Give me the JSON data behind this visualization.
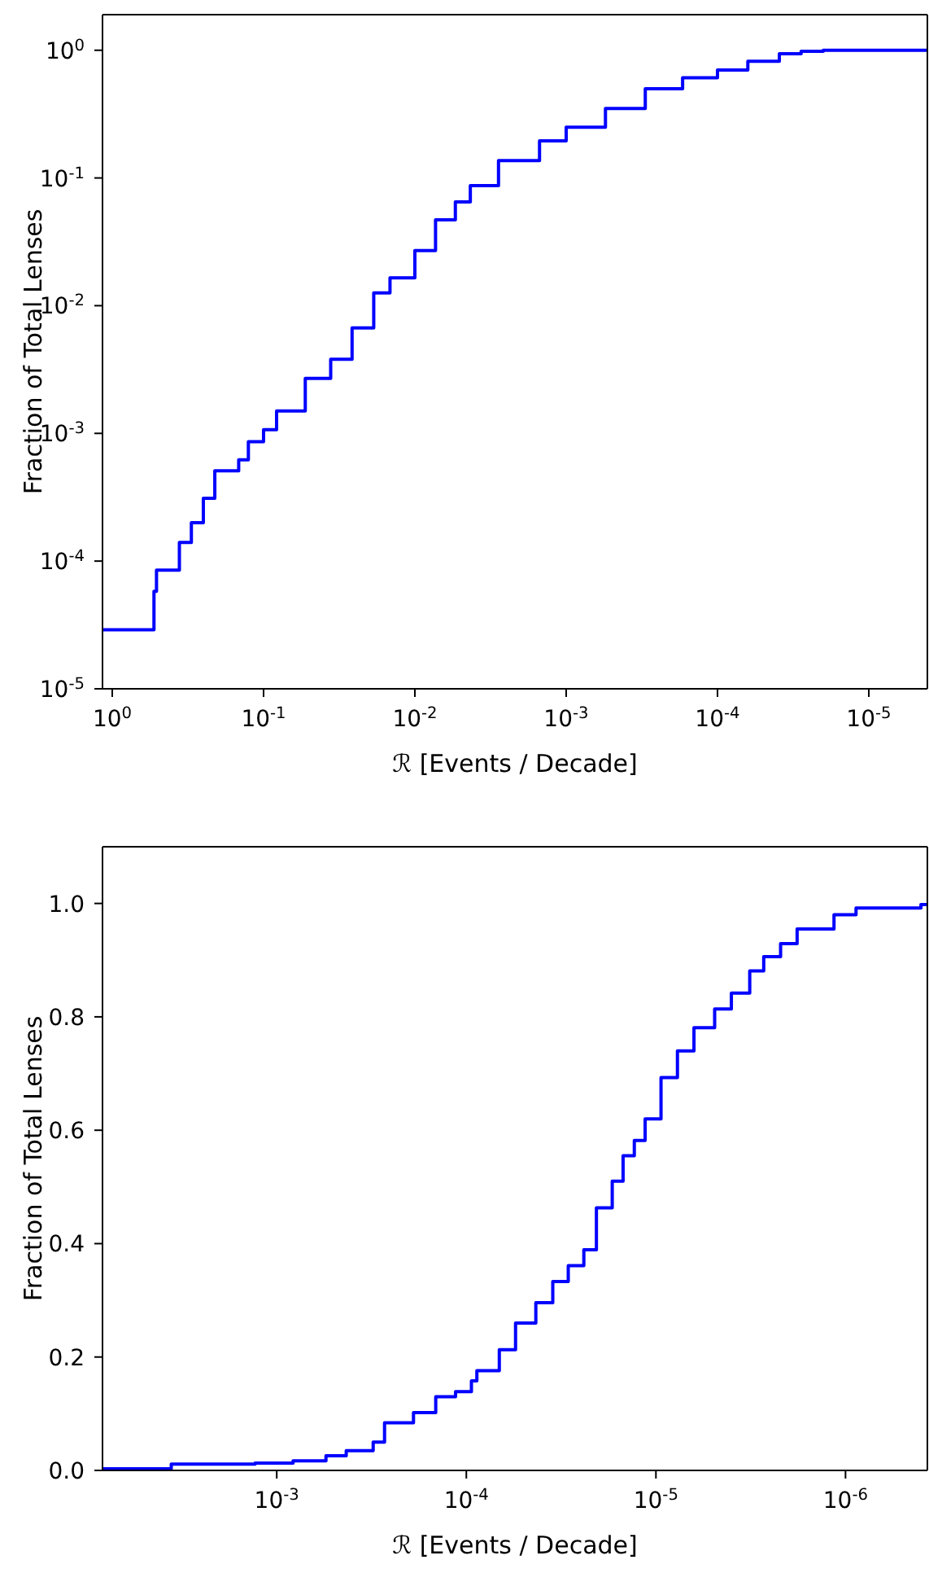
{
  "chart_data": [
    {
      "type": "step",
      "xlabel": "ℛ [Events / Decade]",
      "ylabel": "Fraction of Total Lenses",
      "log": "xy",
      "marker": "none",
      "line_style": "solid",
      "xlim": [
        1.16,
        4.1e-06
      ],
      "xticks": [
        {
          "value": 1,
          "label": "10$^{0}$"
        },
        {
          "value": 0.1,
          "label": "10$^{-1}$"
        },
        {
          "value": 0.01,
          "label": "10$^{-2}$"
        },
        {
          "value": 0.001,
          "label": "10$^{-3}$"
        },
        {
          "value": 0.0001,
          "label": "10$^{-4}$"
        },
        {
          "value": 1e-05,
          "label": "10$^{-5}$"
        }
      ],
      "ylim": [
        1e-05,
        1.9
      ],
      "yticks": [
        {
          "value": 1e-05,
          "label": "10$^{-5}$"
        },
        {
          "value": 0.0001,
          "label": "10$^{-4}$"
        },
        {
          "value": 0.001,
          "label": "10$^{-3}$"
        },
        {
          "value": 0.01,
          "label": "10$^{-2}$"
        },
        {
          "value": 0.1,
          "label": "10$^{-1}$"
        },
        {
          "value": 1,
          "label": "10$^{0}$"
        }
      ],
      "series": [
        {
          "color": "#0000ff",
          "x": [
            1.16,
            0.53,
            0.51,
            0.36,
            0.3,
            0.25,
            0.21,
            0.146,
            0.126,
            0.1,
            0.082,
            0.053,
            0.036,
            0.026,
            0.0187,
            0.0146,
            0.01,
            0.0073,
            0.0054,
            0.0043,
            0.0028,
            0.0015,
            0.001,
            0.00055,
            0.0003,
            0.00017,
            0.0001,
            6.3e-05,
            3.9e-05,
            2.8e-05,
            2e-05,
            4.1e-06
          ],
          "values": [
            2.9e-05,
            5.8e-05,
            8.5e-05,
            0.00014,
            0.0002,
            0.00031,
            0.00051,
            0.00062,
            0.00086,
            0.00107,
            0.0015,
            0.0027,
            0.0038,
            0.0067,
            0.0126,
            0.0165,
            0.027,
            0.047,
            0.065,
            0.087,
            0.137,
            0.195,
            0.25,
            0.35,
            0.5,
            0.61,
            0.7,
            0.82,
            0.94,
            0.98,
            1.0,
            1.0
          ]
        }
      ]
    },
    {
      "type": "step",
      "xlabel": "ℛ [Events / Decade]",
      "ylabel": "Fraction of Total Lenses",
      "log": "x",
      "marker": "none",
      "line_style": "solid",
      "xlim": [
        0.0083,
        3.7e-07
      ],
      "xticks": [
        {
          "value": 0.001,
          "label": "10$^{-3}$"
        },
        {
          "value": 0.0001,
          "label": "10$^{-4}$"
        },
        {
          "value": 1e-05,
          "label": "10$^{-5}$"
        },
        {
          "value": 1e-06,
          "label": "10$^{-6}$"
        }
      ],
      "ylim": [
        0,
        1.1
      ],
      "yticks": [
        {
          "value": 0,
          "label": "0.0"
        },
        {
          "value": 0.2,
          "label": "0.2"
        },
        {
          "value": 0.4,
          "label": "0.4"
        },
        {
          "value": 0.6,
          "label": "0.6"
        },
        {
          "value": 0.8,
          "label": "0.8"
        },
        {
          "value": 1.0,
          "label": "1.0"
        }
      ],
      "series": [
        {
          "color": "#0000ff",
          "x": [
            0.0083,
            0.0036,
            0.0013,
            0.00082,
            0.00055,
            0.00043,
            0.00031,
            0.00027,
            0.00019,
            0.000145,
            0.000114,
            9.4e-05,
            8.8e-05,
            6.7e-05,
            5.5e-05,
            4.3e-05,
            3.5e-05,
            2.9e-05,
            2.4e-05,
            2.06e-05,
            1.7e-05,
            1.49e-05,
            1.3e-05,
            1.14e-05,
            9.4e-06,
            7.7e-06,
            6.3e-06,
            4.9e-06,
            4e-06,
            3.2e-06,
            2.7e-06,
            2.2e-06,
            1.8e-06,
            1.15e-06,
            8.8e-07,
            4e-07,
            3.7e-07
          ],
          "values": [
            0.003,
            0.011,
            0.013,
            0.017,
            0.026,
            0.035,
            0.05,
            0.084,
            0.102,
            0.13,
            0.139,
            0.158,
            0.176,
            0.213,
            0.26,
            0.296,
            0.333,
            0.361,
            0.389,
            0.463,
            0.51,
            0.555,
            0.582,
            0.62,
            0.693,
            0.74,
            0.781,
            0.814,
            0.842,
            0.881,
            0.906,
            0.929,
            0.955,
            0.98,
            0.992,
            0.998,
            0.998
          ]
        }
      ]
    }
  ]
}
